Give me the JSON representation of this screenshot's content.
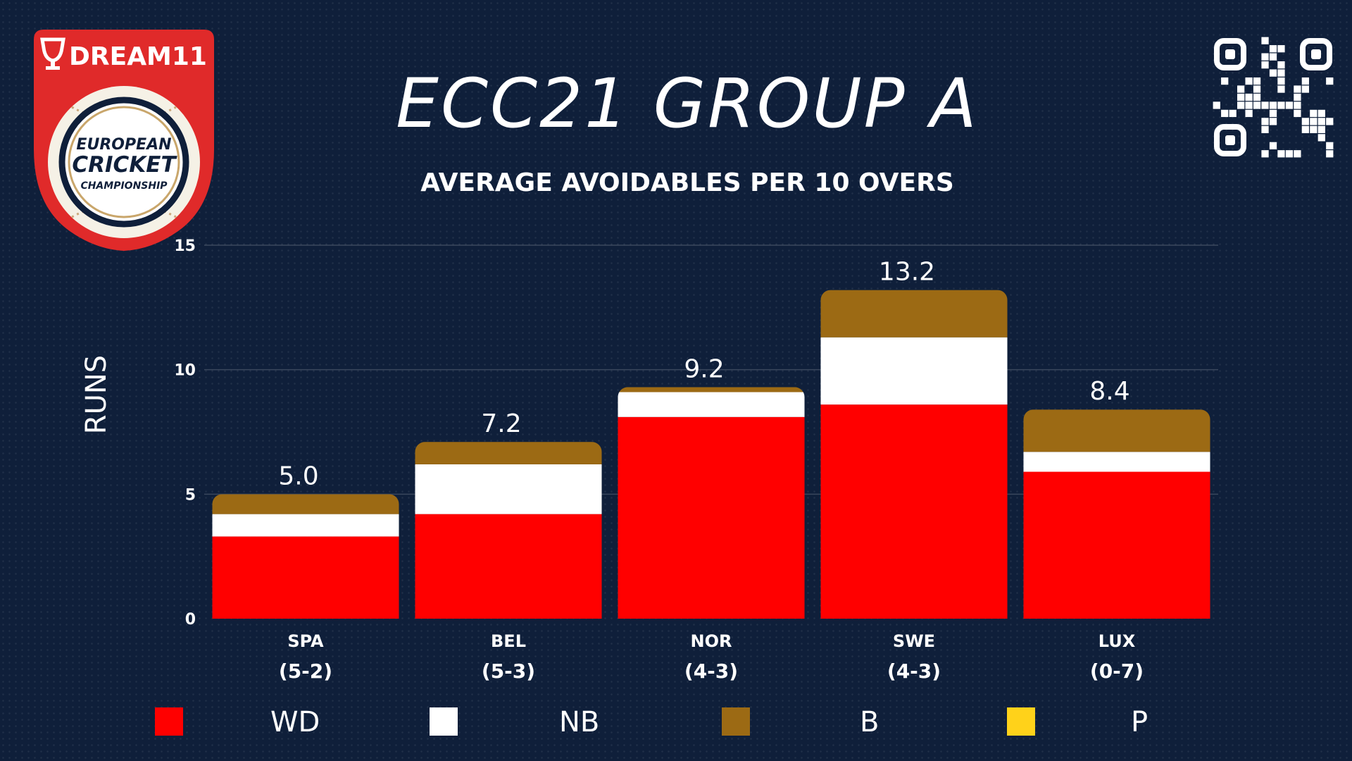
{
  "header": {
    "title": "ECC21 GROUP A",
    "subtitle": "AVERAGE AVOIDABLES PER 10 OVERS"
  },
  "logo": {
    "brand": "DREAM11",
    "line1": "EUROPEAN",
    "line2": "CRICKET",
    "line3": "CHAMPIONSHIP"
  },
  "colors": {
    "background": "#0f1f3a",
    "wd": "#ff0000",
    "nb": "#ffffff",
    "b": "#9c6a14",
    "p": "#ffd21a"
  },
  "chart_data": {
    "type": "bar",
    "stacked": true,
    "categories": [
      "SPA",
      "BEL",
      "NOR",
      "SWE",
      "LUX"
    ],
    "category_records": [
      "(5-2)",
      "(5-3)",
      "(4-3)",
      "(4-3)",
      "(0-7)"
    ],
    "totals": [
      "5.0",
      "7.2",
      "9.2",
      "13.2",
      "8.4"
    ],
    "series": [
      {
        "name": "WD",
        "values": [
          3.3,
          4.2,
          8.1,
          8.6,
          5.9
        ]
      },
      {
        "name": "NB",
        "values": [
          0.9,
          2.0,
          1.0,
          2.7,
          0.8
        ]
      },
      {
        "name": "B",
        "values": [
          0.8,
          0.9,
          0.2,
          1.9,
          1.7
        ]
      },
      {
        "name": "P",
        "values": [
          0,
          0,
          0,
          0,
          0
        ]
      }
    ],
    "title": "ECC21 GROUP A",
    "subtitle": "AVERAGE AVOIDABLES PER 10 OVERS",
    "xlabel": "",
    "ylabel": "RUNS",
    "ylim": [
      0,
      15
    ],
    "yticks": [
      0,
      5,
      10,
      15
    ],
    "grid": true,
    "legend_position": "bottom"
  }
}
